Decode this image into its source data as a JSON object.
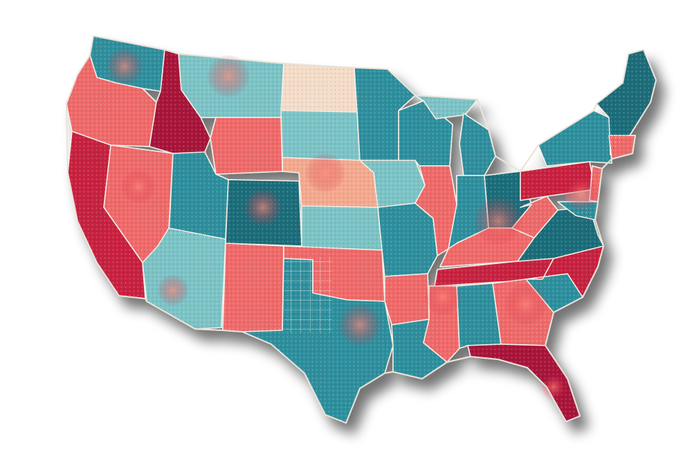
{
  "map": {
    "palette": {
      "teal": "#2f8f9d",
      "teal_dark": "#1f6d7a",
      "teal_light": "#7cc3c6",
      "coral": "#ef6a6a",
      "red": "#c8203f",
      "crimson": "#a8123a",
      "cream": "#f3dcc8",
      "peach": "#f4a98f",
      "border": "#f4efe6",
      "shadow": "#1a1a1a"
    }
  }
}
